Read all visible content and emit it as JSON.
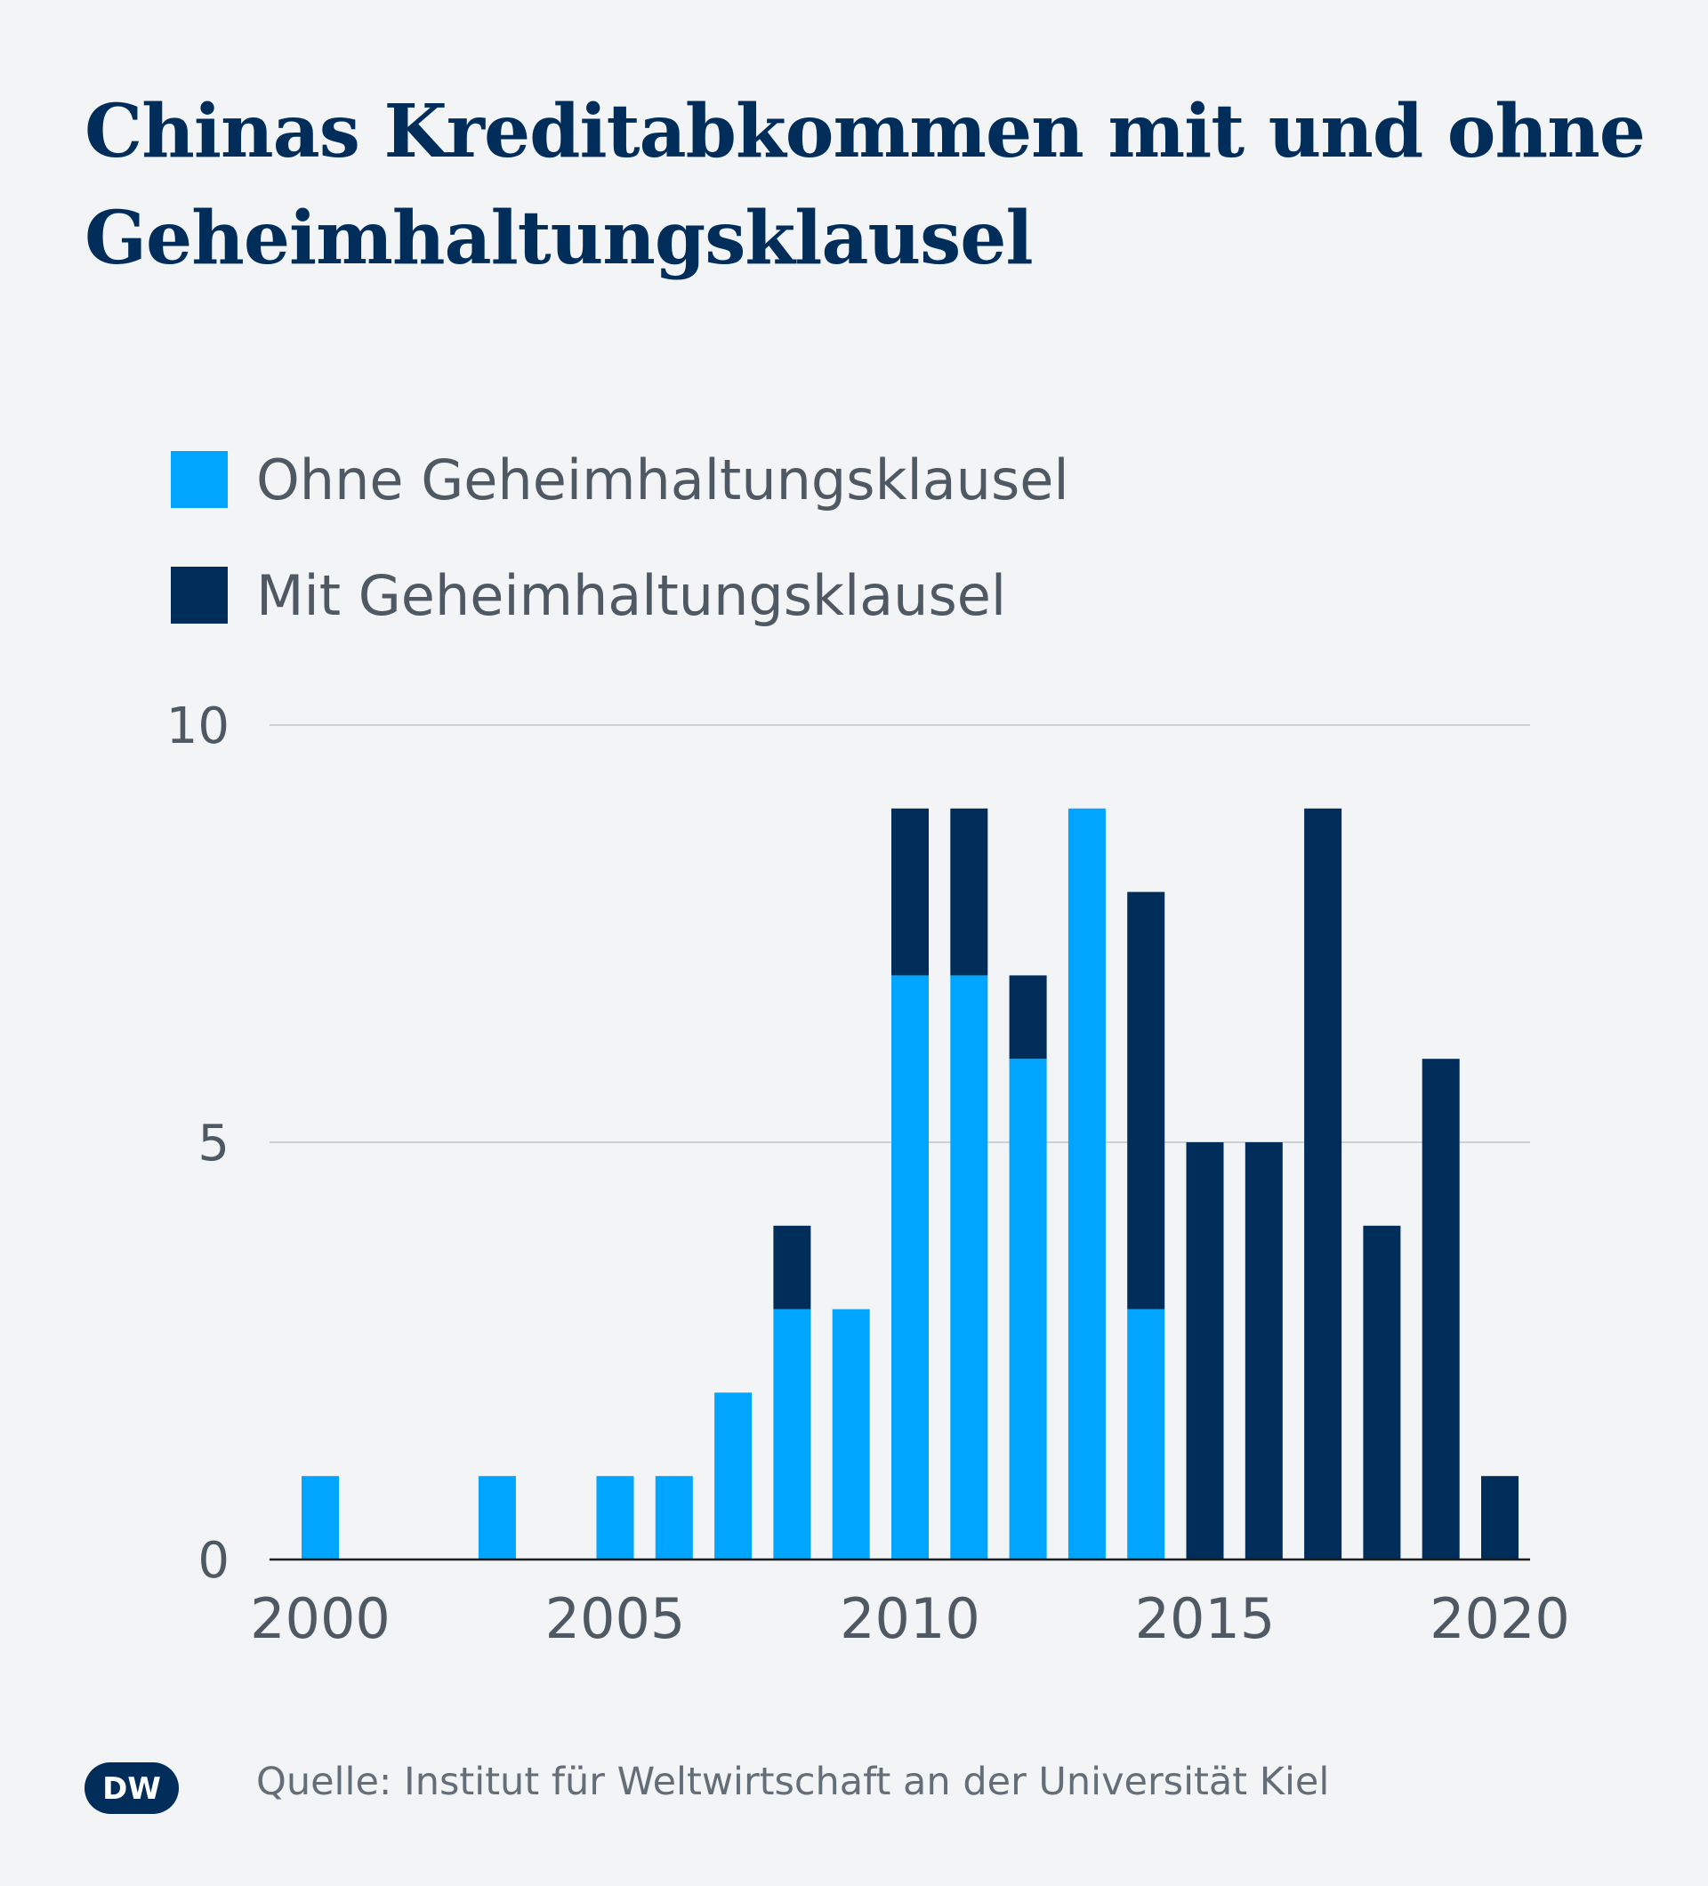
{
  "title": "Chinas Kreditabkommen mit und ohne Geheimhaltungsklausel",
  "source": "Quelle: Institut für Weltwirtschaft an der Universität Kiel",
  "logo": "DW",
  "colors": {
    "background": "#f2f4f6",
    "ohne": "#00a5ff",
    "mit": "#002d5a",
    "grid": "#ccd1d6",
    "axis_text": "#4f5963",
    "title": "#002d5a"
  },
  "legend": {
    "items": [
      {
        "label": "Ohne Geheimhaltungsklausel",
        "color": "#00a5ff"
      },
      {
        "label": "Mit Geheimhaltungsklausel",
        "color": "#002d5a"
      }
    ]
  },
  "chart_data": {
    "type": "bar",
    "stacked": true,
    "x": [
      2000,
      2001,
      2002,
      2003,
      2004,
      2005,
      2006,
      2007,
      2008,
      2009,
      2010,
      2011,
      2012,
      2013,
      2014,
      2015,
      2016,
      2017,
      2018,
      2019,
      2020
    ],
    "series": [
      {
        "name": "Ohne Geheimhaltungsklausel",
        "color": "#00a5ff",
        "values": [
          1,
          0,
          0,
          1,
          0,
          1,
          1,
          2,
          3,
          3,
          7,
          7,
          6,
          9,
          3,
          0,
          0,
          0,
          0,
          0,
          0
        ]
      },
      {
        "name": "Mit Geheimhaltungsklausel",
        "color": "#002d5a",
        "values": [
          0,
          0,
          0,
          0,
          0,
          0,
          0,
          0,
          1,
          0,
          2,
          2,
          1,
          0,
          5,
          5,
          5,
          9,
          4,
          6,
          1
        ]
      }
    ],
    "yticks": [
      0,
      5,
      10
    ],
    "xticks": [
      2000,
      2005,
      2010,
      2015,
      2020
    ],
    "ylim": [
      0,
      10
    ],
    "grid": true,
    "legend_position": "top-left"
  }
}
